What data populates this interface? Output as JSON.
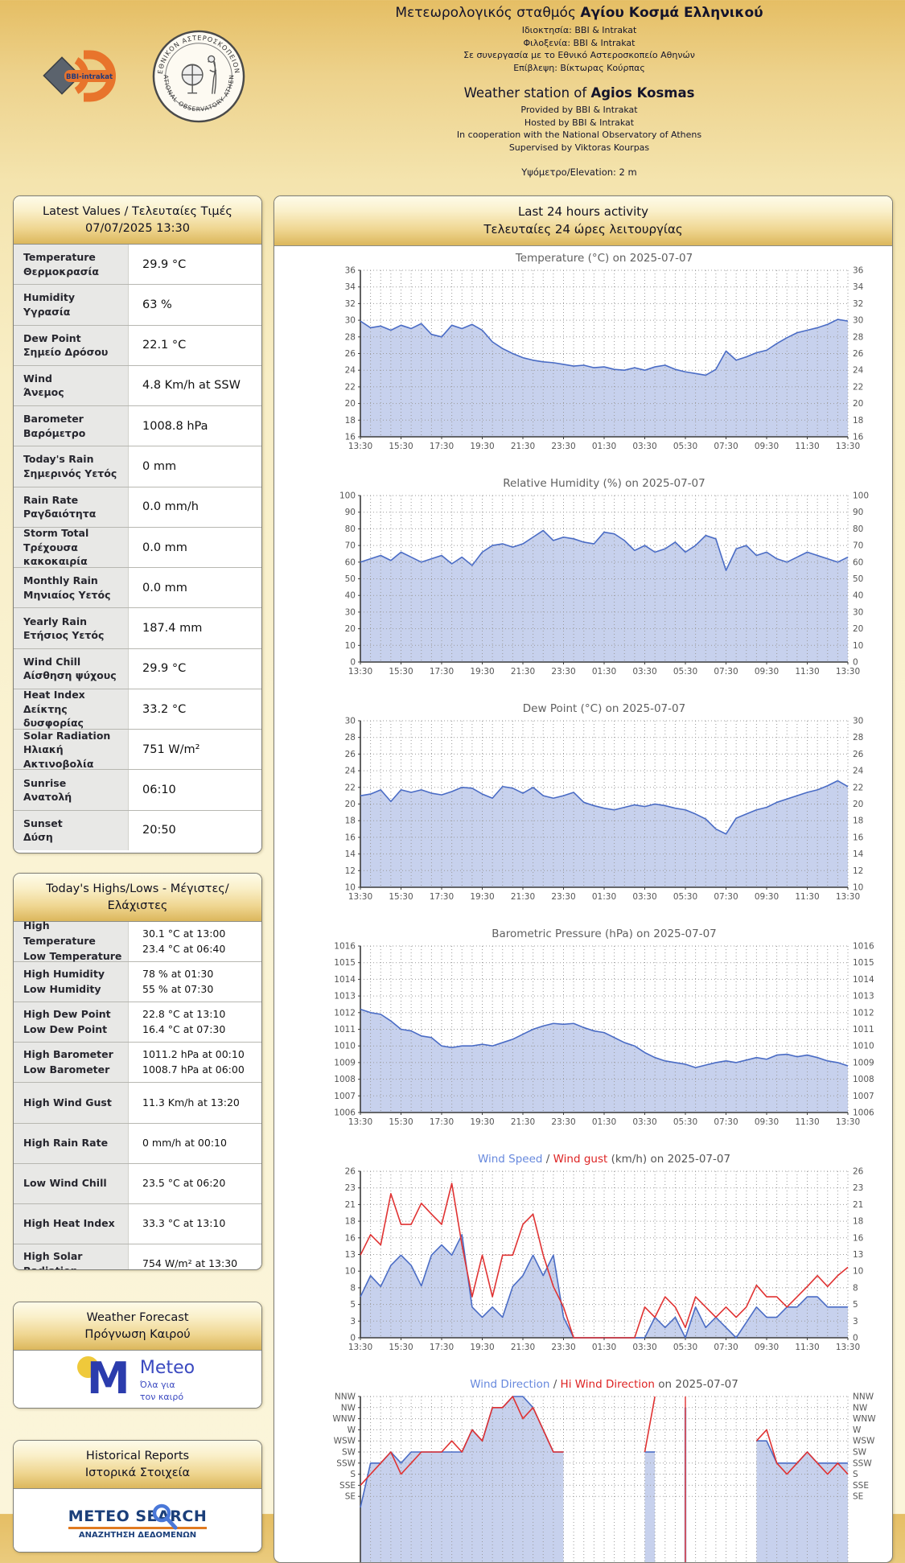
{
  "header": {
    "title_gr_prefix": "Μετεωρολογικός σταθμός ",
    "title_gr_bold": "Αγίου Κοσμά Ελληνικού",
    "sub_gr_1": "Ιδιοκτησία: BBI & Intrakat",
    "sub_gr_2": "Φιλοξενία: BBI & Intrakat",
    "sub_gr_3": "Σε συνεργασία με το Εθνικό Αστεροσκοπείο Αθηνών",
    "sub_gr_4": "Επίβλεψη: Βίκτωρας Κούρπας",
    "title_en_prefix": "Weather station of ",
    "title_en_bold": "Agios Kosmas",
    "sub_en_1": "Provided by BBI & Intrakat",
    "sub_en_2": "Hosted by BBI & Intrakat",
    "sub_en_3": "In cooperation with the National Observatory of Athens",
    "sub_en_4": "Supervised by Viktoras Kourpas",
    "elevation": "Υψόμετρο/Elevation: 2 m",
    "logo_bbi": "BBI-intrakat",
    "logo_noa_top": "ΕΘΝΙΚΟΝ ΑΣΤΕΡΟΣΚΟΠΕΙΟΝ",
    "logo_noa_bottom": "NATIONAL OBSERVATORY ATHENS"
  },
  "latest": {
    "title_line1": "Latest Values / Τελευταίες Τιμές",
    "title_line2": "07/07/2025 13:30",
    "rows": [
      {
        "en": "Temperature",
        "gr": "Θερμοκρασία",
        "value": "29.9 °C"
      },
      {
        "en": "Humidity",
        "gr": "Υγρασία",
        "value": "63 %"
      },
      {
        "en": "Dew Point",
        "gr": "Σημείο Δρόσου",
        "value": "22.1 °C"
      },
      {
        "en": "Wind",
        "gr": "Άνεμος",
        "value": "4.8 Km/h at SSW"
      },
      {
        "en": "Barometer",
        "gr": "Βαρόμετρο",
        "value": "1008.8 hPa"
      },
      {
        "en": "Today's Rain",
        "gr": "Σημερινός Υετός",
        "value": "0 mm"
      },
      {
        "en": "Rain Rate",
        "gr": "Ραγδαιότητα",
        "value": "0.0 mm/h"
      },
      {
        "en": "Storm Total",
        "gr": "Τρέχουσα κακοκαιρία",
        "value": "0.0 mm"
      },
      {
        "en": "Monthly Rain",
        "gr": "Μηνιαίος Υετός",
        "value": "0.0 mm"
      },
      {
        "en": "Yearly Rain",
        "gr": "Ετήσιος Υετός",
        "value": "187.4 mm"
      },
      {
        "en": "Wind Chill",
        "gr": "Αίσθηση ψύχους",
        "value": "29.9 °C"
      },
      {
        "en": "Heat Index",
        "gr": "Δείκτης δυσφορίας",
        "value": "33.2 °C"
      },
      {
        "en": "Solar Radiation",
        "gr": "Ηλιακή Ακτινοβολία",
        "value": "751 W/m²"
      },
      {
        "en": "Sunrise",
        "gr": "Ανατολή",
        "value": "06:10"
      },
      {
        "en": "Sunset",
        "gr": "Δύση",
        "value": "20:50"
      }
    ]
  },
  "highlows": {
    "title": "Today's Highs/Lows - Μέγιστες/Ελάχιστες",
    "rows": [
      {
        "labels": [
          "High Temperature",
          "Low Temperature"
        ],
        "values": [
          "30.1 °C at 13:00",
          "23.4 °C at 06:40"
        ]
      },
      {
        "labels": [
          "High Humidity",
          "Low Humidity"
        ],
        "values": [
          "78 % at 01:30",
          "55 % at 07:30"
        ]
      },
      {
        "labels": [
          "High Dew Point",
          "Low Dew Point"
        ],
        "values": [
          "22.8 °C at 13:10",
          "16.4 °C at 07:30"
        ]
      },
      {
        "labels": [
          "High Barometer",
          "Low Barometer"
        ],
        "values": [
          "1011.2 hPa at 00:10",
          "1008.7 hPa at 06:00"
        ]
      },
      {
        "labels": [
          "High Wind Gust"
        ],
        "values": [
          "11.3 Km/h at 13:20"
        ]
      },
      {
        "labels": [
          "High Rain Rate"
        ],
        "values": [
          "0 mm/h at 00:10"
        ]
      },
      {
        "labels": [
          "Low Wind Chill"
        ],
        "values": [
          "23.5 °C at 06:20"
        ]
      },
      {
        "labels": [
          "High Heat Index"
        ],
        "values": [
          "33.3 °C at 13:10"
        ]
      },
      {
        "labels": [
          "High Solar Radiation"
        ],
        "values": [
          "754 W/m² at 13:30"
        ]
      }
    ]
  },
  "forecast": {
    "title_line1": "Weather Forecast",
    "title_line2": "Πρόγνωση Καιρού",
    "logo_m": "M",
    "logo_word": "Meteo",
    "logo_tag1": "Όλα για",
    "logo_tag2": "τον καιρό"
  },
  "historical": {
    "title_line1": "Historical Reports",
    "title_line2": "Ιστορικά Στοιχεία",
    "logo_title": "METEO SEARCH",
    "logo_sub": "ΑΝΑΖΗΤΗΣΗ ΔΕΔΟΜΕΝΩΝ"
  },
  "activity": {
    "title_line1": "Last 24 hours activity",
    "title_line2": "Τελευταίες 24 ώρες λειτουργίας",
    "x_labels": [
      "13:30",
      "15:30",
      "17:30",
      "19:30",
      "21:30",
      "23:30",
      "01:30",
      "03:30",
      "05:30",
      "07:30",
      "09:30",
      "11:30",
      "13:30"
    ]
  },
  "colors": {
    "line_blue": "#4a6cc5",
    "fill_blue": "#c7d1ed",
    "line_red": "#e03232",
    "title_gray": "#606060",
    "tick_gray": "#555555"
  },
  "chart_data": [
    {
      "id": "temperature",
      "type": "area",
      "title": "Temperature (°C) on 2025-07-07",
      "ylim": [
        16,
        36
      ],
      "yticks": [
        [
          16,
          "16"
        ],
        [
          18,
          "18"
        ],
        [
          20,
          "20"
        ],
        [
          22,
          "22"
        ],
        [
          24,
          "24"
        ],
        [
          26,
          "26"
        ],
        [
          28,
          "28"
        ],
        [
          30,
          "30"
        ],
        [
          32,
          "32"
        ],
        [
          34,
          "34"
        ],
        [
          36,
          "36"
        ]
      ],
      "series": [
        {
          "name": "temperature",
          "color": "#4a6cc5",
          "fill": "#c7d1ed",
          "values": [
            29.9,
            29.1,
            29.3,
            28.8,
            29.4,
            29.0,
            29.6,
            28.3,
            28.0,
            29.4,
            29.0,
            29.5,
            28.8,
            27.4,
            26.6,
            26.0,
            25.5,
            25.2,
            25.0,
            24.9,
            24.7,
            24.5,
            24.6,
            24.3,
            24.4,
            24.1,
            24.0,
            24.3,
            24.0,
            24.4,
            24.6,
            24.1,
            23.8,
            23.6,
            23.4,
            24.1,
            26.3,
            25.2,
            25.6,
            26.1,
            26.4,
            27.2,
            27.9,
            28.5,
            28.8,
            29.1,
            29.5,
            30.1,
            29.9
          ]
        }
      ]
    },
    {
      "id": "humidity",
      "type": "area",
      "title": "Relative Humidity (%) on 2025-07-07",
      "ylim": [
        0,
        100
      ],
      "yticks": [
        [
          0,
          "0"
        ],
        [
          10,
          "10"
        ],
        [
          20,
          "20"
        ],
        [
          30,
          "30"
        ],
        [
          40,
          "40"
        ],
        [
          50,
          "50"
        ],
        [
          60,
          "60"
        ],
        [
          70,
          "70"
        ],
        [
          80,
          "80"
        ],
        [
          90,
          "90"
        ],
        [
          100,
          "100"
        ]
      ],
      "series": [
        {
          "name": "humidity",
          "color": "#4a6cc5",
          "fill": "#c7d1ed",
          "values": [
            60,
            62,
            64,
            61,
            66,
            63,
            60,
            62,
            64,
            59,
            63,
            58,
            66,
            70,
            71,
            69,
            71,
            75,
            79,
            73,
            75,
            74,
            72,
            71,
            78,
            77,
            73,
            67,
            70,
            66,
            68,
            72,
            66,
            70,
            76,
            74,
            55,
            68,
            70,
            64,
            66,
            62,
            60,
            63,
            66,
            64,
            62,
            60,
            63
          ]
        }
      ]
    },
    {
      "id": "dewpoint",
      "type": "area",
      "title": "Dew Point (°C) on 2025-07-07",
      "ylim": [
        10,
        30
      ],
      "yticks": [
        [
          10,
          "10"
        ],
        [
          12,
          "12"
        ],
        [
          14,
          "14"
        ],
        [
          16,
          "16"
        ],
        [
          18,
          "18"
        ],
        [
          20,
          "20"
        ],
        [
          22,
          "22"
        ],
        [
          24,
          "24"
        ],
        [
          26,
          "26"
        ],
        [
          28,
          "28"
        ],
        [
          30,
          "30"
        ]
      ],
      "series": [
        {
          "name": "dew_point",
          "color": "#4a6cc5",
          "fill": "#c7d1ed",
          "values": [
            21.0,
            21.2,
            21.7,
            20.3,
            21.7,
            21.4,
            21.7,
            21.3,
            21.1,
            21.5,
            22.0,
            21.9,
            21.2,
            20.7,
            22.1,
            21.9,
            21.3,
            22.0,
            21.0,
            20.7,
            21.0,
            21.4,
            20.2,
            19.8,
            19.5,
            19.3,
            19.6,
            19.9,
            19.7,
            20.0,
            19.8,
            19.5,
            19.3,
            18.8,
            18.2,
            17.0,
            16.4,
            18.3,
            18.8,
            19.3,
            19.6,
            20.2,
            20.6,
            21.0,
            21.4,
            21.7,
            22.2,
            22.8,
            22.1
          ]
        }
      ]
    },
    {
      "id": "pressure",
      "type": "area",
      "title": "Barometric Pressure (hPa) on 2025-07-07",
      "ylim": [
        1006,
        1016
      ],
      "yticks": [
        [
          1006,
          "1006"
        ],
        [
          1007,
          "1007"
        ],
        [
          1008,
          "1008"
        ],
        [
          1009,
          "1009"
        ],
        [
          1010,
          "1010"
        ],
        [
          1011,
          "1011"
        ],
        [
          1012,
          "1012"
        ],
        [
          1013,
          "1013"
        ],
        [
          1014,
          "1014"
        ],
        [
          1015,
          "1015"
        ],
        [
          1016,
          "1016"
        ]
      ],
      "series": [
        {
          "name": "pressure",
          "color": "#4a6cc5",
          "fill": "#c7d1ed",
          "values": [
            1012.2,
            1012.0,
            1011.9,
            1011.5,
            1011.0,
            1010.9,
            1010.6,
            1010.5,
            1010.0,
            1009.9,
            1010.0,
            1010.0,
            1010.1,
            1010.0,
            1010.2,
            1010.4,
            1010.7,
            1011.0,
            1011.2,
            1011.35,
            1011.3,
            1011.35,
            1011.1,
            1010.9,
            1010.8,
            1010.5,
            1010.2,
            1010.0,
            1009.6,
            1009.3,
            1009.1,
            1009.0,
            1008.9,
            1008.7,
            1008.85,
            1009.0,
            1009.1,
            1009.0,
            1009.15,
            1009.3,
            1009.2,
            1009.45,
            1009.5,
            1009.35,
            1009.45,
            1009.3,
            1009.1,
            1009.0,
            1008.8
          ]
        }
      ]
    },
    {
      "id": "wind",
      "type": "area",
      "title_segments": [
        [
          "Wind Speed",
          "#6688dd"
        ],
        [
          " / ",
          "#555555"
        ],
        [
          "Wind gust",
          "#dd2222"
        ],
        [
          " (km/h) on 2025-07-07",
          "#555555"
        ]
      ],
      "ylim": [
        0,
        26
      ],
      "yticks": [
        [
          0,
          "0"
        ],
        [
          2.6,
          "3"
        ],
        [
          5.2,
          "5"
        ],
        [
          7.8,
          "8"
        ],
        [
          10.4,
          "10"
        ],
        [
          13,
          "13"
        ],
        [
          15.6,
          "16"
        ],
        [
          18.2,
          "18"
        ],
        [
          20.8,
          "21"
        ],
        [
          23.4,
          "23"
        ],
        [
          26,
          "26"
        ]
      ],
      "series": [
        {
          "name": "wind_speed",
          "color": "#4a6cc5",
          "fill": "#c7d1ed",
          "values": [
            6.4,
            9.7,
            8.0,
            11.3,
            12.9,
            11.3,
            8.1,
            12.9,
            14.5,
            12.9,
            16.1,
            4.8,
            3.2,
            4.8,
            3.2,
            8.0,
            9.7,
            12.9,
            9.7,
            12.9,
            3.2,
            0,
            0,
            0,
            0,
            0,
            0,
            0,
            0,
            3.2,
            1.6,
            3.2,
            0,
            4.8,
            1.6,
            3.2,
            1.6,
            0,
            2.4,
            4.8,
            3.2,
            3.2,
            4.8,
            4.8,
            6.4,
            6.4,
            4.8,
            4.8,
            4.8
          ]
        },
        {
          "name": "wind_gust",
          "color": "#e03232",
          "values": [
            12.9,
            16.1,
            14.5,
            22.5,
            17.7,
            17.7,
            21.0,
            19.3,
            17.7,
            24.1,
            14.5,
            6.4,
            12.9,
            6.4,
            12.9,
            12.9,
            17.7,
            19.3,
            12.9,
            8.0,
            4.8,
            0,
            0,
            0,
            0,
            0,
            0,
            0,
            4.8,
            3.2,
            6.4,
            4.8,
            1.6,
            6.4,
            4.8,
            3.2,
            4.8,
            3.2,
            4.8,
            8.2,
            6.4,
            6.4,
            4.8,
            6.4,
            8.0,
            9.7,
            8.0,
            9.7,
            11.0
          ]
        }
      ]
    },
    {
      "id": "wind_direction",
      "type": "area",
      "title_segments": [
        [
          "Wind Direction",
          "#6688dd"
        ],
        [
          " / ",
          "#555555"
        ],
        [
          "Hi Wind Direction",
          "#dd2222"
        ],
        [
          " on 2025-07-07",
          "#555555"
        ]
      ],
      "ylim": [
        0,
        15
      ],
      "yticks": [
        [
          6,
          "SE"
        ],
        [
          7,
          "SSE"
        ],
        [
          8,
          "S"
        ],
        [
          9,
          "SSW"
        ],
        [
          10,
          "SW"
        ],
        [
          11,
          "WSW"
        ],
        [
          12,
          "W"
        ],
        [
          13,
          "WNW"
        ],
        [
          14,
          "NW"
        ],
        [
          15,
          "NNW"
        ]
      ],
      "series": [
        {
          "name": "wind_direction",
          "color": "#4a6cc5",
          "fill": "#c7d1ed",
          "values": [
            5,
            9,
            9,
            10,
            9,
            10,
            10,
            10,
            10,
            10,
            10,
            12,
            11,
            14,
            14,
            15,
            15,
            14,
            12,
            10,
            10,
            null,
            null,
            null,
            null,
            null,
            null,
            null,
            10,
            10,
            null,
            null,
            14,
            null,
            null,
            null,
            null,
            null,
            null,
            11,
            11,
            9,
            9,
            9,
            10,
            9,
            9,
            9,
            9
          ]
        },
        {
          "name": "hi_wind_direction",
          "color": "#e03232",
          "values": [
            7,
            8,
            9,
            10,
            8,
            9,
            10,
            10,
            10,
            11,
            10,
            12,
            11,
            14,
            14,
            15,
            13,
            14,
            12,
            10,
            10,
            null,
            null,
            null,
            null,
            null,
            null,
            null,
            10,
            15,
            null,
            null,
            15,
            null,
            null,
            null,
            null,
            null,
            null,
            11,
            12,
            9,
            8,
            9,
            10,
            9,
            8,
            9,
            8
          ]
        }
      ]
    }
  ]
}
